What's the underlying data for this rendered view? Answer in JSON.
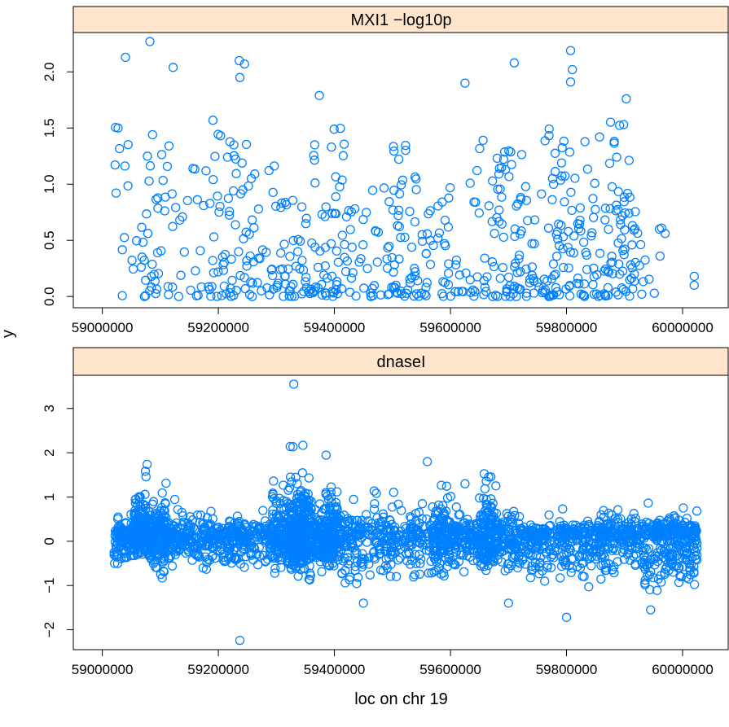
{
  "chart_data": [
    {
      "type": "scatter",
      "title": "MXI1 −log10p",
      "xlim": [
        58950000,
        60080000
      ],
      "ylim": [
        -0.1,
        2.35
      ],
      "x_ticks": [
        59000000,
        59200000,
        59400000,
        59600000,
        59800000,
        60000000
      ],
      "x_tick_labels": [
        "59000000",
        "59200000",
        "59400000",
        "59600000",
        "59800000",
        "60000000"
      ],
      "y_ticks": [
        0,
        0.5,
        1,
        1.5,
        2
      ],
      "y_tick_labels": [
        "0.0",
        "0.5",
        "1.0",
        "1.5",
        "2.0"
      ],
      "notable_points": [
        {
          "x": 59082000,
          "y": 2.27
        },
        {
          "x": 59040000,
          "y": 2.13
        },
        {
          "x": 59122000,
          "y": 2.04
        },
        {
          "x": 59236000,
          "y": 2.1
        },
        {
          "x": 59245000,
          "y": 2.07
        },
        {
          "x": 59237000,
          "y": 1.95
        },
        {
          "x": 59374000,
          "y": 1.79
        },
        {
          "x": 59625000,
          "y": 1.9
        },
        {
          "x": 59710000,
          "y": 2.08
        },
        {
          "x": 59807000,
          "y": 2.19
        },
        {
          "x": 59810000,
          "y": 2.02
        },
        {
          "x": 59807000,
          "y": 1.91
        },
        {
          "x": 59903000,
          "y": 1.76
        },
        {
          "x": 60020000,
          "y": 0.18
        },
        {
          "x": 60020000,
          "y": 0.1
        },
        {
          "x": 59970000,
          "y": 0.56
        },
        {
          "x": 59960000,
          "y": 0.6
        }
      ],
      "density": [
        {
          "x0": 59020000,
          "x1": 59060000,
          "n": 14,
          "ymax": 1.55
        },
        {
          "x0": 59060000,
          "x1": 59130000,
          "n": 40,
          "ymax": 1.45
        },
        {
          "x0": 59130000,
          "x1": 59190000,
          "n": 22,
          "ymax": 1.15
        },
        {
          "x0": 59190000,
          "x1": 59260000,
          "n": 60,
          "ymax": 1.6
        },
        {
          "x0": 59260000,
          "x1": 59300000,
          "n": 20,
          "ymax": 1.5
        },
        {
          "x0": 59300000,
          "x1": 59360000,
          "n": 45,
          "ymax": 0.9
        },
        {
          "x0": 59360000,
          "x1": 59420000,
          "n": 55,
          "ymax": 1.5
        },
        {
          "x0": 59420000,
          "x1": 59500000,
          "n": 40,
          "ymax": 1.0
        },
        {
          "x0": 59500000,
          "x1": 59560000,
          "n": 55,
          "ymax": 1.42
        },
        {
          "x0": 59560000,
          "x1": 59640000,
          "n": 35,
          "ymax": 1.2
        },
        {
          "x0": 59640000,
          "x1": 59700000,
          "n": 45,
          "ymax": 1.4
        },
        {
          "x0": 59700000,
          "x1": 59760000,
          "n": 50,
          "ymax": 1.3
        },
        {
          "x0": 59760000,
          "x1": 59820000,
          "n": 60,
          "ymax": 1.5
        },
        {
          "x0": 59820000,
          "x1": 59870000,
          "n": 40,
          "ymax": 1.45
        },
        {
          "x0": 59870000,
          "x1": 59920000,
          "n": 60,
          "ymax": 1.6
        },
        {
          "x0": 59920000,
          "x1": 59970000,
          "n": 10,
          "ymax": 0.65
        }
      ],
      "grid": false,
      "legend": "none",
      "marker": "open-circle"
    },
    {
      "type": "scatter",
      "title": "dnaseI",
      "xlim": [
        58950000,
        60080000
      ],
      "ylim": [
        -2.45,
        3.75
      ],
      "x_ticks": [
        59000000,
        59200000,
        59400000,
        59600000,
        59800000,
        60000000
      ],
      "x_tick_labels": [
        "59000000",
        "59200000",
        "59400000",
        "59600000",
        "59800000",
        "60000000"
      ],
      "y_ticks": [
        -2,
        -1,
        0,
        1,
        2,
        3
      ],
      "y_tick_labels": [
        "−2",
        "−1",
        "0",
        "1",
        "2",
        "3"
      ],
      "notable_points": [
        {
          "x": 59237000,
          "y": -2.24
        },
        {
          "x": 59800000,
          "y": -1.72
        },
        {
          "x": 59700000,
          "y": -1.4
        },
        {
          "x": 59945000,
          "y": -1.55
        },
        {
          "x": 59450000,
          "y": -1.4
        },
        {
          "x": 59330000,
          "y": 3.55
        },
        {
          "x": 59560000,
          "y": 1.8
        },
        {
          "x": 59625000,
          "y": 1.3
        },
        {
          "x": 59860000,
          "y": 0.2
        },
        {
          "x": 59240000,
          "y": 0.25
        }
      ],
      "density": [
        {
          "x0": 59020000,
          "x1": 59055000,
          "n": 120,
          "ymin": -0.8,
          "ymax": 0.9
        },
        {
          "x0": 59055000,
          "x1": 59080000,
          "n": 180,
          "ymin": -0.6,
          "ymax": 2.65
        },
        {
          "x0": 59080000,
          "x1": 59100000,
          "n": 100,
          "ymin": -0.9,
          "ymax": 1.9
        },
        {
          "x0": 59100000,
          "x1": 59110000,
          "n": 60,
          "ymin": -1.4,
          "ymax": 2.3
        },
        {
          "x0": 59110000,
          "x1": 59190000,
          "n": 180,
          "ymin": -0.9,
          "ymax": 1.3
        },
        {
          "x0": 59190000,
          "x1": 59290000,
          "n": 220,
          "ymin": -0.9,
          "ymax": 1.0
        },
        {
          "x0": 59290000,
          "x1": 59320000,
          "n": 140,
          "ymin": -0.9,
          "ymax": 2.9
        },
        {
          "x0": 59320000,
          "x1": 59340000,
          "n": 160,
          "ymin": -1.1,
          "ymax": 3.5
        },
        {
          "x0": 59340000,
          "x1": 59360000,
          "n": 160,
          "ymin": -1.2,
          "ymax": 3.4
        },
        {
          "x0": 59360000,
          "x1": 59385000,
          "n": 120,
          "ymin": -1.0,
          "ymax": 1.5
        },
        {
          "x0": 59385000,
          "x1": 59405000,
          "n": 140,
          "ymin": -0.9,
          "ymax": 2.8
        },
        {
          "x0": 59405000,
          "x1": 59570000,
          "n": 320,
          "ymin": -1.4,
          "ymax": 1.4
        },
        {
          "x0": 59570000,
          "x1": 59590000,
          "n": 100,
          "ymin": -1.0,
          "ymax": 2.1
        },
        {
          "x0": 59590000,
          "x1": 59650000,
          "n": 160,
          "ymin": -0.9,
          "ymax": 1.4
        },
        {
          "x0": 59650000,
          "x1": 59675000,
          "n": 140,
          "ymin": -1.0,
          "ymax": 2.65
        },
        {
          "x0": 59675000,
          "x1": 59720000,
          "n": 120,
          "ymin": -1.0,
          "ymax": 1.75
        },
        {
          "x0": 59720000,
          "x1": 59820000,
          "n": 220,
          "ymin": -1.2,
          "ymax": 0.9
        },
        {
          "x0": 59820000,
          "x1": 59930000,
          "n": 260,
          "ymin": -1.3,
          "ymax": 1.1
        },
        {
          "x0": 59930000,
          "x1": 60025000,
          "n": 300,
          "ymin": -1.6,
          "ymax": 1.15
        }
      ],
      "grid": false,
      "legend": "none",
      "marker": "open-circle"
    }
  ],
  "xlabel": "loc on chr 19",
  "ylabel": "y",
  "colors": {
    "points": "#0080ff",
    "strip_fill": "#ffe5cc",
    "frame": "#000000"
  }
}
